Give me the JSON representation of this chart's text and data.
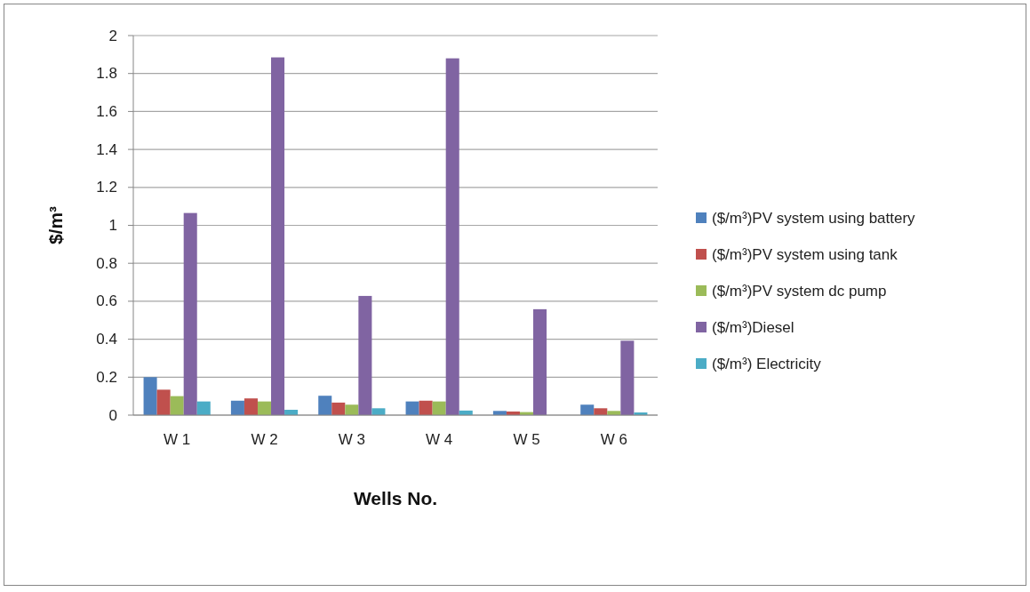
{
  "chart_data": {
    "type": "bar",
    "xlabel": "Wells No.",
    "ylabel": "$/m³",
    "categories": [
      "W 1",
      "W 2",
      "W 3",
      "W 4",
      "W 5",
      "W 6"
    ],
    "series": [
      {
        "name": "($/m³)PV system using battery",
        "color": "#4f81bd",
        "values": [
          0.2,
          0.076,
          0.102,
          0.072,
          0.022,
          0.055
        ]
      },
      {
        "name": "($/m³)PV system using tank",
        "color": "#c0504d",
        "values": [
          0.134,
          0.088,
          0.066,
          0.076,
          0.019,
          0.036
        ]
      },
      {
        "name": "($/m³)PV system dc pump",
        "color": "#9bbb59",
        "values": [
          0.1,
          0.072,
          0.055,
          0.072,
          0.016,
          0.022
        ]
      },
      {
        "name": "($/m³)Diesel",
        "color": "#8064a2",
        "values": [
          1.065,
          1.885,
          0.628,
          1.88,
          0.558,
          0.392
        ]
      },
      {
        "name": "($/m³) Electricity",
        "color": "#4bacc6",
        "values": [
          0.072,
          0.028,
          0.036,
          0.024,
          0,
          0.014
        ]
      }
    ],
    "ylim": [
      0,
      2
    ],
    "yticks": [
      0,
      0.2,
      0.4,
      0.6,
      0.8,
      1,
      1.2,
      1.4,
      1.6,
      1.8,
      2
    ],
    "grid": "y",
    "legend": "right"
  }
}
